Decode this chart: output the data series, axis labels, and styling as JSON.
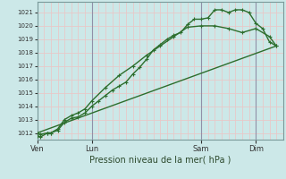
{
  "xlabel": "Pression niveau de la mer( hPa )",
  "bg_color": "#cce8e8",
  "grid_color_minor": "#e8c8c8",
  "grid_color_major": "#b8b8c8",
  "line_color": "#2d6e2d",
  "ylim": [
    1011.5,
    1021.8
  ],
  "yticks": [
    1012,
    1013,
    1014,
    1015,
    1016,
    1017,
    1018,
    1019,
    1020,
    1021
  ],
  "xtick_labels": [
    "Ven",
    "Lun",
    "Sam",
    "Dim"
  ],
  "xtick_positions": [
    0,
    8,
    24,
    32
  ],
  "vline_positions": [
    0,
    8,
    24,
    32
  ],
  "xlim": [
    0,
    36
  ],
  "line1_x": [
    0,
    0.5,
    1.5,
    2,
    3,
    4,
    5,
    6,
    7,
    8,
    9,
    10,
    11,
    12,
    13,
    14,
    15,
    16,
    17,
    18,
    19,
    20,
    21,
    22,
    23,
    24,
    25,
    26,
    27,
    28,
    29,
    30,
    31,
    32,
    33,
    34,
    35
  ],
  "line1_y": [
    1011.8,
    1011.7,
    1012.0,
    1012.0,
    1012.2,
    1012.8,
    1013.1,
    1013.2,
    1013.5,
    1014.0,
    1014.4,
    1014.8,
    1015.2,
    1015.5,
    1015.8,
    1016.4,
    1016.9,
    1017.5,
    1018.2,
    1018.6,
    1019.0,
    1019.3,
    1019.5,
    1020.1,
    1020.5,
    1020.5,
    1020.6,
    1021.2,
    1021.2,
    1021.0,
    1021.2,
    1021.2,
    1021.0,
    1020.2,
    1019.8,
    1018.8,
    1018.5
  ],
  "line2_x": [
    0,
    0.5,
    1.5,
    2,
    3,
    4,
    5,
    6,
    7,
    8,
    10,
    12,
    14,
    16,
    18,
    20,
    22,
    24,
    26,
    28,
    30,
    32,
    34,
    35
  ],
  "line2_y": [
    1012.0,
    1011.9,
    1012.0,
    1012.0,
    1012.3,
    1013.0,
    1013.3,
    1013.5,
    1013.8,
    1014.4,
    1015.4,
    1016.3,
    1017.0,
    1017.8,
    1018.5,
    1019.2,
    1019.9,
    1020.0,
    1020.0,
    1019.8,
    1019.5,
    1019.8,
    1019.2,
    1018.5
  ],
  "line3_x": [
    0,
    35
  ],
  "line3_y": [
    1012.0,
    1018.5
  ],
  "marker_size": 2.5,
  "line_width": 1.0
}
